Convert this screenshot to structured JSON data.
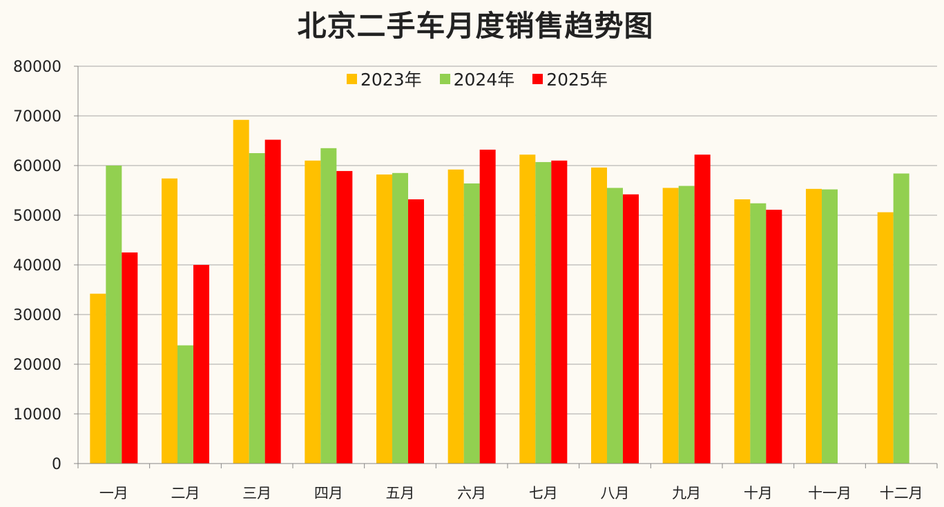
{
  "chart_data": {
    "type": "bar",
    "title": "北京二手车月度销售趋势图",
    "xlabel": "",
    "ylabel": "",
    "ylim": [
      0,
      80000
    ],
    "yticks": [
      0,
      10000,
      20000,
      30000,
      40000,
      50000,
      60000,
      70000,
      80000
    ],
    "grid": true,
    "legend_position": "top-center",
    "categories": [
      "一月",
      "二月",
      "三月",
      "四月",
      "五月",
      "六月",
      "七月",
      "八月",
      "九月",
      "十月",
      "十一月",
      "十二月"
    ],
    "series": [
      {
        "name": "2023年",
        "color": "#ffc000",
        "values": [
          34200,
          57400,
          69200,
          61000,
          58200,
          59200,
          62200,
          59600,
          55500,
          53200,
          55300,
          50600
        ]
      },
      {
        "name": "2024年",
        "color": "#92d050",
        "values": [
          60000,
          23800,
          62500,
          63500,
          58500,
          56400,
          60700,
          55500,
          55900,
          52400,
          55200,
          58400
        ]
      },
      {
        "name": "2025年",
        "color": "#ff0000",
        "values": [
          42500,
          40000,
          65200,
          58900,
          53200,
          63200,
          61000,
          54200,
          62200,
          51100,
          null,
          null
        ]
      }
    ]
  },
  "colors": {
    "background": "#fdfaf3",
    "gridline": "#a6a6a6",
    "axis": "#868686",
    "text": "#222222"
  }
}
